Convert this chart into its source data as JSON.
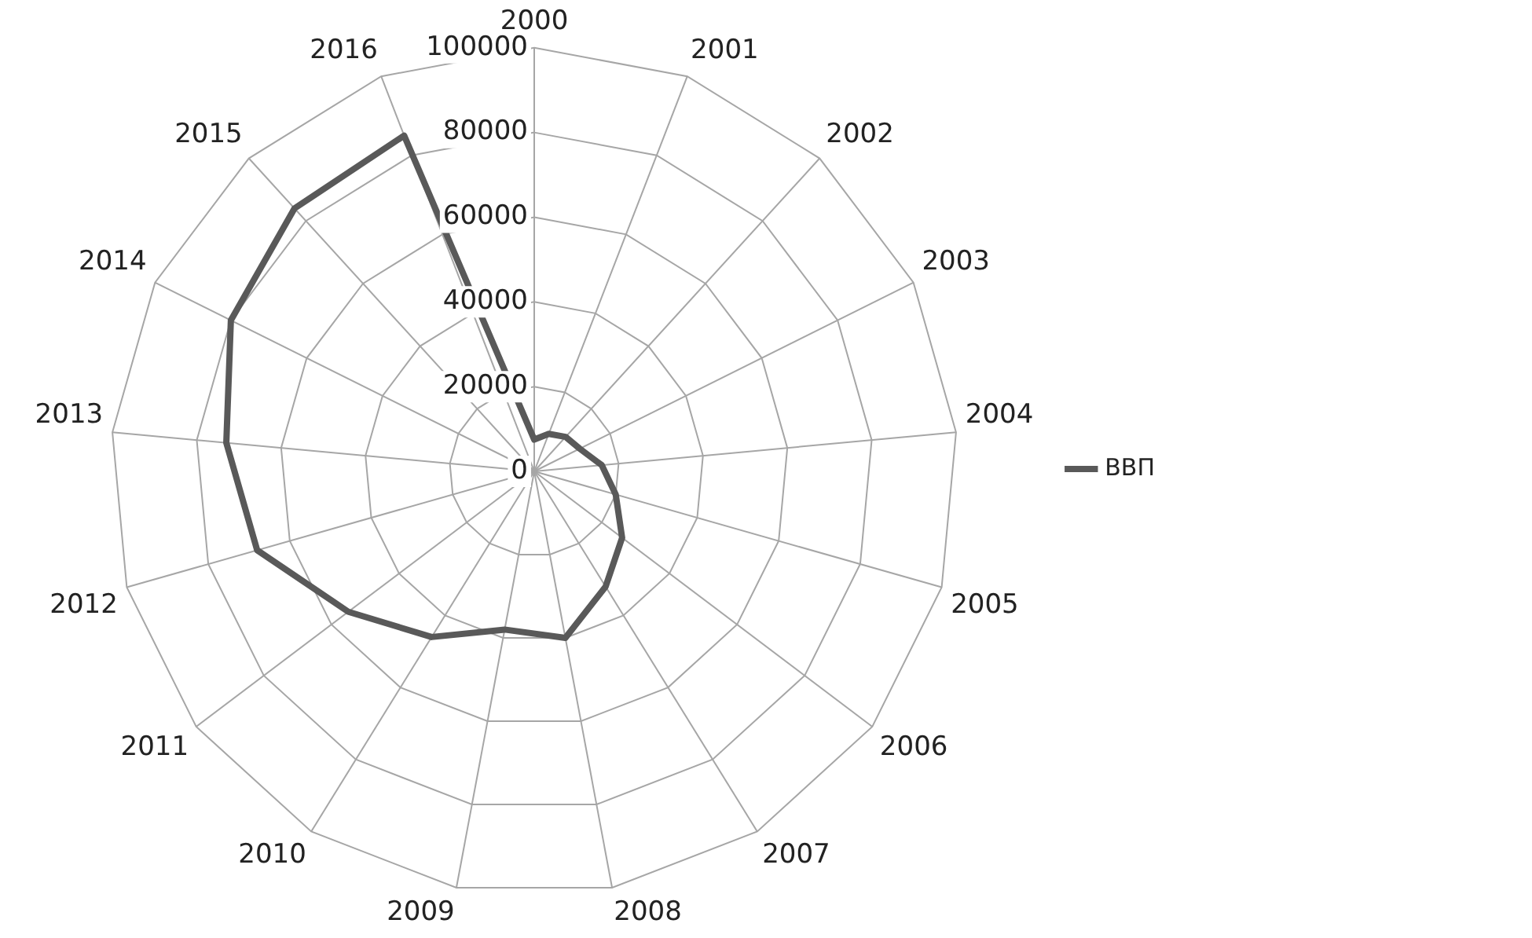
{
  "chart_data": {
    "type": "radar",
    "categories": [
      "2000",
      "2001",
      "2002",
      "2003",
      "2004",
      "2005",
      "2006",
      "2007",
      "2008",
      "2009",
      "2010",
      "2011",
      "2012",
      "2013",
      "2014",
      "2015",
      "2016"
    ],
    "series": [
      {
        "name": "ВВП",
        "color": "#595959",
        "values": [
          7500,
          9500,
          11000,
          12000,
          16000,
          20000,
          26000,
          32000,
          40000,
          38000,
          46000,
          55000,
          68000,
          73000,
          80000,
          84000,
          85000
        ]
      }
    ],
    "ylim": [
      0,
      100000
    ],
    "yticks": [
      0,
      20000,
      40000,
      60000,
      80000,
      100000
    ],
    "grid": true,
    "legend": "right",
    "marker": "none",
    "line_style": "solid"
  }
}
